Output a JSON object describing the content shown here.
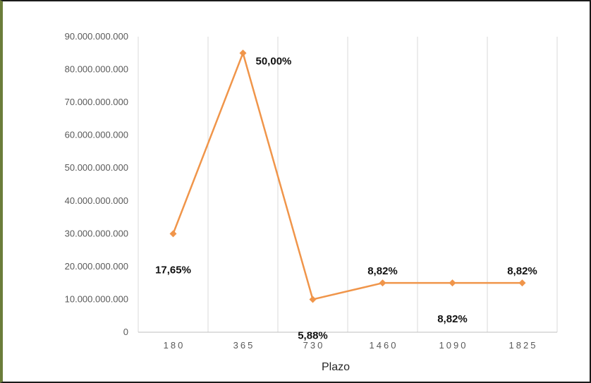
{
  "chart_data": {
    "type": "line",
    "title": "",
    "xlabel": "Plazo",
    "ylabel": "",
    "categories": [
      "180",
      "365",
      "730",
      "1460",
      "1090",
      "1825"
    ],
    "series": [
      {
        "values": [
          30000000000,
          85000000000,
          10000000000,
          15000000000,
          15000000000,
          15000000000
        ],
        "color": "#f0954a"
      }
    ],
    "data_labels": [
      "17,65%",
      "50,00%",
      "5,88%",
      "8,82%",
      "8,82%",
      "8,82%"
    ],
    "data_label_positions": [
      "below",
      "right",
      "below",
      "above",
      "below",
      "above"
    ],
    "ylim": [
      0,
      90000000000
    ],
    "y_ticks": [
      0,
      10000000000,
      20000000000,
      30000000000,
      40000000000,
      50000000000,
      60000000000,
      70000000000,
      80000000000,
      90000000000
    ],
    "y_tick_labels": [
      "0",
      "10.000.000.000",
      "20.000.000.000",
      "30.000.000.000",
      "40.000.000.000",
      "50.000.000.000",
      "60.000.000.000",
      "70.000.000.000",
      "80.000.000.000",
      "90.000.000.000"
    ],
    "grid": "vertical",
    "legend": "none",
    "colors": {
      "gridline": "#d9d9d9",
      "axis": "#bfbfbf",
      "frame_left": "#6b7d3a",
      "frame": "#1a1a1a"
    }
  }
}
